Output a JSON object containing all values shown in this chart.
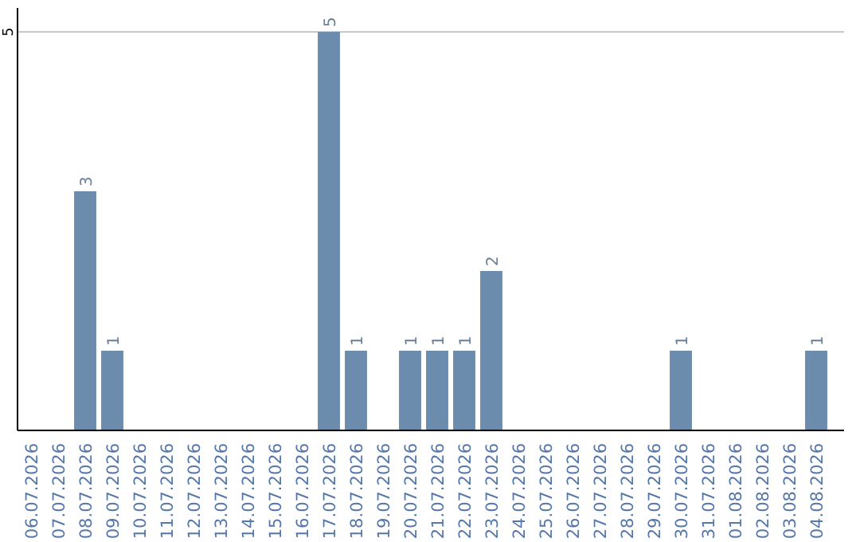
{
  "chart_data": {
    "type": "bar",
    "categories": [
      "06.07.2026",
      "07.07.2026",
      "08.07.2026",
      "09.07.2026",
      "10.07.2026",
      "11.07.2026",
      "12.07.2026",
      "13.07.2026",
      "14.07.2026",
      "15.07.2026",
      "16.07.2026",
      "17.07.2026",
      "18.07.2026",
      "19.07.2026",
      "20.07.2026",
      "21.07.2026",
      "22.07.2026",
      "23.07.2026",
      "24.07.2026",
      "25.07.2026",
      "26.07.2026",
      "27.07.2026",
      "28.07.2026",
      "29.07.2026",
      "30.07.2026",
      "31.07.2026",
      "01.08.2026",
      "02.08.2026",
      "03.08.2026",
      "04.08.2026"
    ],
    "values": [
      0,
      0,
      3,
      1,
      0,
      0,
      0,
      0,
      0,
      0,
      0,
      5,
      1,
      0,
      1,
      1,
      1,
      2,
      0,
      0,
      0,
      0,
      0,
      0,
      1,
      0,
      0,
      0,
      0,
      1
    ],
    "value_labels": [
      null,
      null,
      "3",
      "1",
      null,
      null,
      null,
      null,
      null,
      null,
      null,
      "5",
      "1",
      null,
      "1",
      "1",
      "1",
      "2",
      null,
      null,
      null,
      null,
      null,
      null,
      "1",
      null,
      null,
      null,
      null,
      "1"
    ],
    "color": "#6b8cad",
    "ylim": [
      0,
      5.3
    ],
    "yticks": [
      5
    ],
    "grid": "y"
  }
}
